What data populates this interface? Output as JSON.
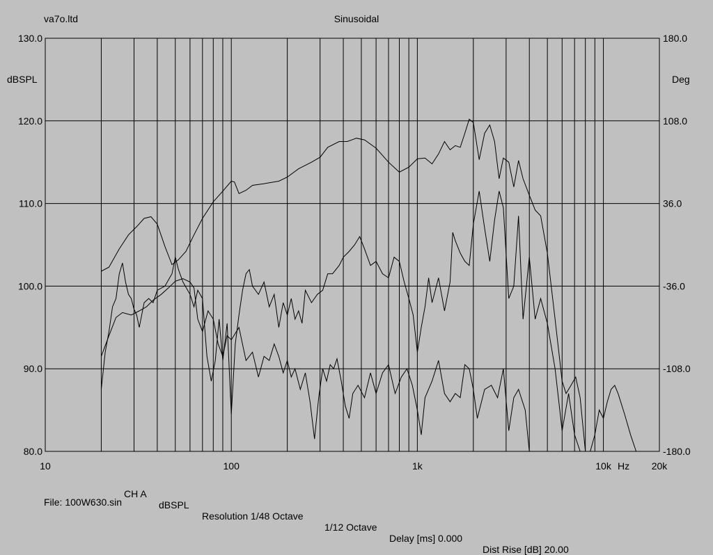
{
  "header": {
    "left_title": "va7o.ltd",
    "center_title": "Sinusoidal"
  },
  "footer": {
    "channel": "CH A",
    "units": "dBSPL",
    "resolution": "Resolution 1/48 Octave",
    "smoothing": "1/12 Octave",
    "delay": "Delay [ms] 0.000",
    "dist_rise": "Dist Rise [dB] 20.00",
    "file": "File: 100W630.sin"
  },
  "chart_data": {
    "type": "line",
    "x_scale": "log",
    "xlim": [
      10,
      20000
    ],
    "ylim": [
      80,
      130
    ],
    "y2lim": [
      -180,
      180
    ],
    "ylabel": "dBSPL",
    "y2label": "Deg",
    "xlabel": "Hz",
    "grid": true,
    "x_tick_labels": [
      {
        "value": 10,
        "label": "10"
      },
      {
        "value": 100,
        "label": "100"
      },
      {
        "value": 1000,
        "label": "1k"
      },
      {
        "value": 10000,
        "label": "10k"
      },
      {
        "value": 20000,
        "label": "20k"
      }
    ],
    "y_tick_labels": [
      "80.0",
      "90.0",
      "100.0",
      "110.0",
      "120.0",
      "130.0"
    ],
    "y_tick_values": [
      80,
      90,
      100,
      110,
      120,
      130
    ],
    "y2_tick_labels": [
      "-180.0",
      "-108.0",
      "-36.0",
      "36.0",
      "108.0",
      "180.0"
    ],
    "y2_tick_values": [
      -180,
      -108,
      -36,
      36,
      108,
      180
    ],
    "series": [
      {
        "values": [
          [
            20,
            101.8
          ],
          [
            22,
            102.3
          ],
          [
            25,
            104.5
          ],
          [
            28,
            106.2
          ],
          [
            31,
            107.2
          ],
          [
            34,
            108.2
          ],
          [
            37,
            108.4
          ],
          [
            40,
            107.5
          ],
          [
            44,
            104.8
          ],
          [
            48,
            102.6
          ],
          [
            52,
            103.2
          ],
          [
            57,
            104.2
          ],
          [
            63,
            106.2
          ],
          [
            70,
            108.2
          ],
          [
            80,
            110.2
          ],
          [
            90,
            111.5
          ],
          [
            100,
            112.7
          ],
          [
            104,
            112.6
          ],
          [
            110,
            111.2
          ],
          [
            120,
            111.6
          ],
          [
            130,
            112.2
          ],
          [
            150,
            112.4
          ],
          [
            180,
            112.7
          ],
          [
            200,
            113.2
          ],
          [
            230,
            114.2
          ],
          [
            270,
            115.0
          ],
          [
            300,
            115.6
          ],
          [
            330,
            116.8
          ],
          [
            380,
            117.5
          ],
          [
            420,
            117.5
          ],
          [
            470,
            117.9
          ],
          [
            520,
            117.7
          ],
          [
            600,
            116.7
          ],
          [
            700,
            115.0
          ],
          [
            800,
            113.8
          ],
          [
            900,
            114.4
          ],
          [
            1000,
            115.4
          ],
          [
            1100,
            115.5
          ],
          [
            1200,
            114.8
          ],
          [
            1300,
            116.0
          ],
          [
            1400,
            117.5
          ],
          [
            1500,
            116.5
          ],
          [
            1600,
            117.0
          ],
          [
            1700,
            116.8
          ],
          [
            1800,
            118.5
          ],
          [
            1900,
            120.2
          ],
          [
            2000,
            119.8
          ],
          [
            2150,
            115.3
          ],
          [
            2300,
            118.5
          ],
          [
            2450,
            119.5
          ],
          [
            2600,
            117.5
          ],
          [
            2750,
            113.0
          ],
          [
            2900,
            115.5
          ],
          [
            3100,
            115.0
          ],
          [
            3300,
            112.0
          ],
          [
            3500,
            115.2
          ],
          [
            3700,
            113.0
          ],
          [
            4000,
            111.0
          ],
          [
            4300,
            109.2
          ],
          [
            4600,
            108.5
          ],
          [
            5000,
            104.0
          ],
          [
            5500,
            96.0
          ],
          [
            6000,
            88.5
          ],
          [
            6300,
            87.0
          ],
          [
            6700,
            88.0
          ],
          [
            7100,
            89.0
          ],
          [
            7500,
            86.5
          ],
          [
            8000,
            80.0
          ]
        ]
      },
      {
        "values": [
          [
            20,
            91.5
          ],
          [
            22,
            94.0
          ],
          [
            24,
            96.2
          ],
          [
            26,
            96.8
          ],
          [
            29,
            96.5
          ],
          [
            32,
            97.0
          ],
          [
            35,
            97.5
          ],
          [
            38,
            98.3
          ],
          [
            42,
            99.0
          ],
          [
            46,
            99.8
          ],
          [
            50,
            100.6
          ],
          [
            55,
            100.9
          ],
          [
            60,
            100.5
          ],
          [
            63,
            99.8
          ],
          [
            66,
            96.0
          ],
          [
            70,
            94.5
          ],
          [
            75,
            97.0
          ],
          [
            80,
            96.0
          ],
          [
            85,
            93.0
          ],
          [
            90,
            91.5
          ],
          [
            95,
            94.0
          ],
          [
            100,
            93.5
          ],
          [
            110,
            95.0
          ],
          [
            120,
            91.0
          ],
          [
            130,
            92.0
          ],
          [
            140,
            89.0
          ],
          [
            150,
            91.5
          ],
          [
            160,
            91.0
          ],
          [
            170,
            93.0
          ],
          [
            180,
            91.5
          ],
          [
            190,
            89.5
          ],
          [
            200,
            91.0
          ],
          [
            210,
            89.0
          ],
          [
            220,
            90.0
          ],
          [
            235,
            87.5
          ],
          [
            250,
            89.5
          ],
          [
            265,
            86.0
          ],
          [
            280,
            81.5
          ],
          [
            295,
            86.5
          ],
          [
            310,
            90.0
          ],
          [
            325,
            88.5
          ],
          [
            340,
            90.5
          ],
          [
            355,
            90.0
          ],
          [
            370,
            91.2
          ],
          [
            390,
            88.5
          ],
          [
            410,
            85.5
          ],
          [
            430,
            84.0
          ],
          [
            450,
            87.0
          ],
          [
            480,
            88.0
          ],
          [
            520,
            86.5
          ],
          [
            560,
            89.5
          ],
          [
            600,
            87.0
          ],
          [
            650,
            89.5
          ],
          [
            700,
            90.5
          ],
          [
            760,
            87.0
          ],
          [
            820,
            89.0
          ],
          [
            880,
            90.0
          ],
          [
            940,
            88.0
          ],
          [
            1000,
            85.0
          ],
          [
            1050,
            82.0
          ],
          [
            1100,
            86.5
          ],
          [
            1200,
            88.5
          ],
          [
            1300,
            91.0
          ],
          [
            1400,
            87.0
          ],
          [
            1500,
            86.0
          ],
          [
            1600,
            87.0
          ],
          [
            1700,
            86.5
          ],
          [
            1800,
            90.5
          ],
          [
            1900,
            90.0
          ],
          [
            2000,
            87.5
          ],
          [
            2100,
            84.0
          ],
          [
            2300,
            87.5
          ],
          [
            2500,
            88.0
          ],
          [
            2700,
            86.5
          ],
          [
            2900,
            90.0
          ],
          [
            3100,
            82.5
          ],
          [
            3300,
            86.5
          ],
          [
            3500,
            87.5
          ],
          [
            3800,
            85.0
          ],
          [
            4000,
            80.0
          ]
        ]
      },
      {
        "values": [
          [
            20,
            87.5
          ],
          [
            21,
            92.0
          ],
          [
            22,
            94.5
          ],
          [
            23,
            97.5
          ],
          [
            24,
            98.5
          ],
          [
            25,
            101.5
          ],
          [
            26,
            102.8
          ],
          [
            27,
            100.5
          ],
          [
            28,
            99.0
          ],
          [
            29,
            98.5
          ],
          [
            30,
            97.2
          ],
          [
            31,
            96.5
          ],
          [
            32,
            95.0
          ],
          [
            34,
            98.0
          ],
          [
            36,
            98.5
          ],
          [
            38,
            98.0
          ],
          [
            40,
            99.5
          ],
          [
            44,
            100.0
          ],
          [
            48,
            101.5
          ],
          [
            50,
            103.5
          ],
          [
            52,
            102.0
          ],
          [
            55,
            100.5
          ],
          [
            60,
            99.0
          ],
          [
            63,
            97.5
          ],
          [
            66,
            99.5
          ],
          [
            70,
            98.5
          ],
          [
            74,
            91.5
          ],
          [
            78,
            88.5
          ],
          [
            82,
            91.0
          ],
          [
            86,
            96.0
          ],
          [
            90,
            91.0
          ],
          [
            95,
            95.5
          ],
          [
            100,
            84.5
          ],
          [
            105,
            93.0
          ],
          [
            110,
            96.5
          ],
          [
            115,
            99.5
          ],
          [
            120,
            101.5
          ],
          [
            125,
            102.0
          ],
          [
            130,
            100.0
          ],
          [
            140,
            99.0
          ],
          [
            150,
            100.5
          ],
          [
            160,
            97.5
          ],
          [
            170,
            99.0
          ],
          [
            180,
            95.0
          ],
          [
            190,
            98.0
          ],
          [
            200,
            96.5
          ],
          [
            210,
            98.5
          ],
          [
            220,
            96.0
          ],
          [
            230,
            97.0
          ],
          [
            240,
            95.5
          ],
          [
            250,
            99.5
          ],
          [
            270,
            98.0
          ],
          [
            290,
            99.0
          ],
          [
            310,
            99.5
          ],
          [
            330,
            101.5
          ],
          [
            350,
            101.5
          ],
          [
            380,
            102.5
          ],
          [
            400,
            103.5
          ],
          [
            430,
            104.2
          ],
          [
            460,
            105.0
          ],
          [
            490,
            106.0
          ],
          [
            520,
            104.5
          ],
          [
            560,
            102.5
          ],
          [
            600,
            103.0
          ],
          [
            650,
            101.5
          ],
          [
            700,
            101.0
          ],
          [
            750,
            103.5
          ],
          [
            800,
            103.0
          ],
          [
            850,
            100.5
          ],
          [
            900,
            98.5
          ],
          [
            950,
            96.5
          ],
          [
            1000,
            92.0
          ],
          [
            1050,
            95.0
          ],
          [
            1100,
            97.5
          ],
          [
            1150,
            101.0
          ],
          [
            1200,
            98.0
          ],
          [
            1300,
            101.0
          ],
          [
            1400,
            97.0
          ],
          [
            1500,
            100.5
          ],
          [
            1550,
            106.5
          ],
          [
            1600,
            105.5
          ],
          [
            1700,
            104.0
          ],
          [
            1800,
            103.0
          ],
          [
            1900,
            102.5
          ],
          [
            2000,
            107.5
          ],
          [
            2150,
            111.5
          ],
          [
            2300,
            107.0
          ],
          [
            2450,
            103.0
          ],
          [
            2600,
            108.0
          ],
          [
            2750,
            111.5
          ],
          [
            2900,
            109.5
          ],
          [
            3100,
            98.5
          ],
          [
            3300,
            100.0
          ],
          [
            3500,
            108.5
          ],
          [
            3700,
            96.0
          ],
          [
            4000,
            103.5
          ],
          [
            4300,
            96.0
          ],
          [
            4600,
            98.5
          ],
          [
            5000,
            95.5
          ],
          [
            5500,
            90.0
          ],
          [
            6000,
            82.5
          ],
          [
            6500,
            87.0
          ],
          [
            7000,
            82.0
          ],
          [
            7500,
            80.0
          ]
        ]
      },
      {
        "values": [
          [
            8500,
            80.0
          ],
          [
            9000,
            82.0
          ],
          [
            9500,
            85.0
          ],
          [
            10000,
            84.0
          ],
          [
            10500,
            86.0
          ],
          [
            11000,
            87.5
          ],
          [
            11500,
            88.0
          ],
          [
            12000,
            87.0
          ],
          [
            13000,
            84.5
          ],
          [
            14000,
            82.0
          ],
          [
            15000,
            80.0
          ]
        ]
      }
    ]
  }
}
